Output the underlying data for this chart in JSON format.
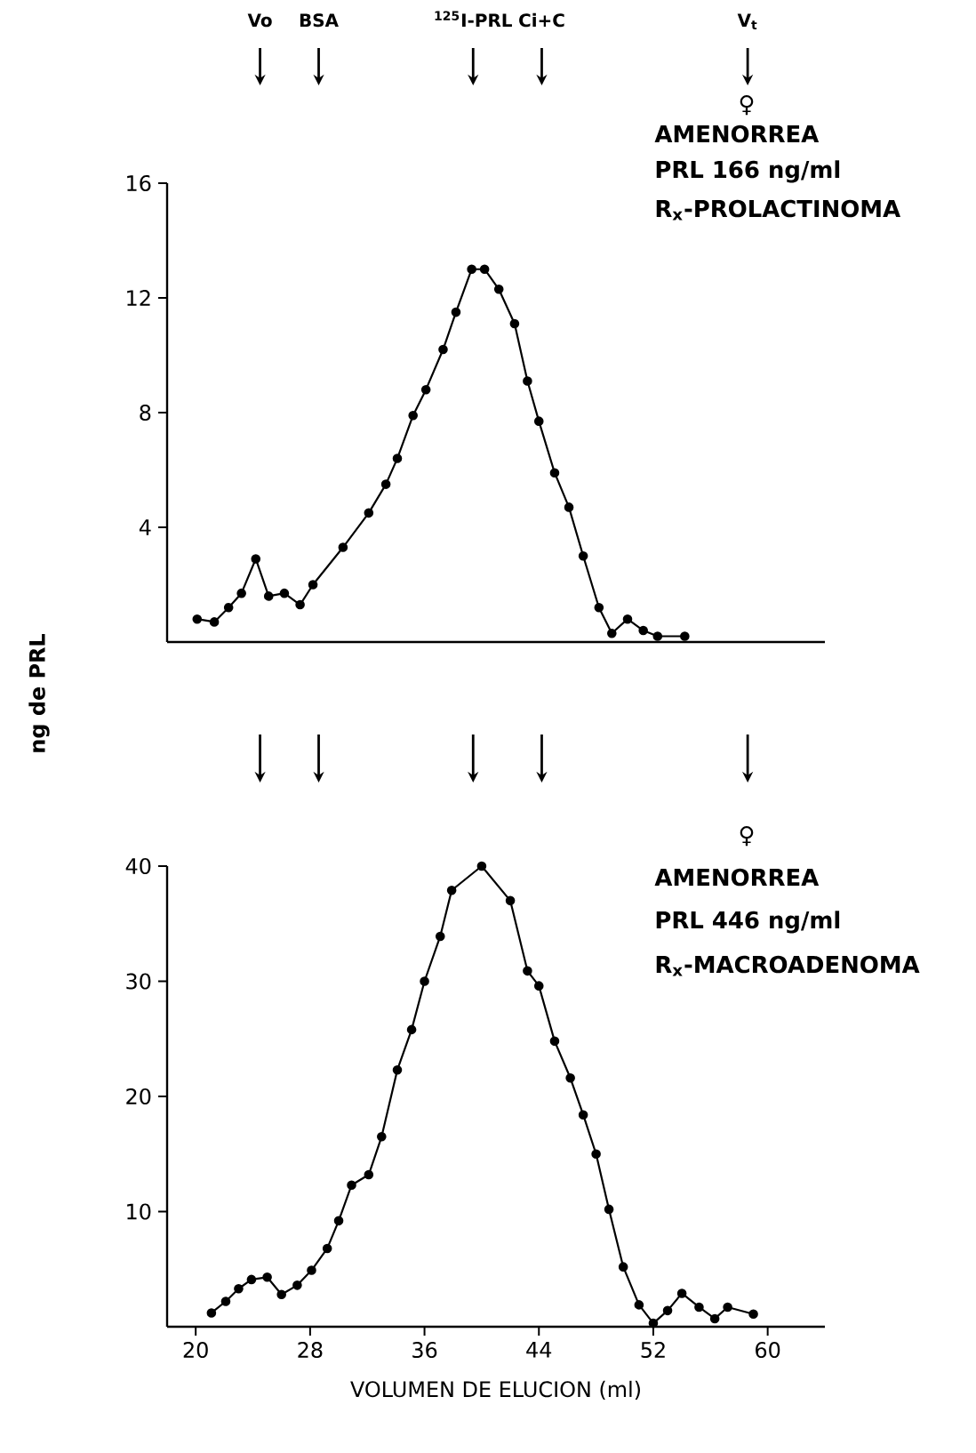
{
  "chart_data": [
    {
      "type": "line",
      "ylabel": "ng de PRL",
      "xlim": [
        18,
        64
      ],
      "ylim": [
        0,
        16
      ],
      "yticks": [
        4,
        8,
        12,
        16
      ],
      "tick_labels": "y",
      "marker": "circle",
      "line_style": "solid",
      "series": [
        {
          "color": "#000000",
          "x": [
            20.1,
            21.3,
            22.3,
            23.2,
            24.2,
            25.1,
            26.2,
            27.3,
            28.2,
            30.3,
            32.1,
            33.3,
            34.1,
            35.2,
            36.1,
            37.3,
            38.2,
            39.3,
            40.2,
            41.2,
            42.3,
            43.2,
            44.0,
            45.1,
            46.1,
            47.1,
            48.2,
            49.1,
            50.2,
            51.3,
            52.3,
            54.2
          ],
          "values": [
            0.8,
            0.7,
            1.2,
            1.7,
            2.9,
            1.6,
            1.7,
            1.3,
            2.0,
            3.3,
            4.5,
            5.5,
            6.4,
            7.9,
            8.8,
            10.2,
            11.5,
            13.0,
            13.0,
            12.3,
            11.1,
            9.1,
            7.7,
            5.9,
            4.7,
            3.0,
            1.2,
            0.3,
            0.8,
            0.4,
            0.2,
            0.2
          ]
        }
      ],
      "ref_lines": [
        {
          "axis": "x",
          "value": 24.5,
          "label": "Vo"
        },
        {
          "axis": "x",
          "value": 28.6,
          "label": "BSA"
        },
        {
          "axis": "x",
          "value": 39.4,
          "label": "$^{125}$I-PRL"
        },
        {
          "axis": "x",
          "value": 44.2,
          "label": "Ci+C"
        },
        {
          "axis": "x",
          "value": 58.6,
          "label": "V$_{t}$"
        }
      ],
      "annotations": [
        "♀",
        "AMENORREA",
        "PRL 166 ng/ml",
        "R$_{x}$-PROLACTINOMA"
      ]
    },
    {
      "type": "line",
      "xlabel": "VOLUMEN DE ELUCION (ml)",
      "xlim": [
        18,
        64
      ],
      "ylim": [
        0,
        40
      ],
      "xticks": [
        20,
        28,
        36,
        44,
        52,
        60
      ],
      "yticks": [
        10,
        20,
        30,
        40
      ],
      "marker": "circle",
      "line_style": "solid",
      "series": [
        {
          "color": "#000000",
          "x": [
            21.1,
            22.1,
            23.0,
            23.9,
            25.0,
            26.0,
            27.1,
            28.1,
            29.2,
            30.0,
            30.9,
            32.1,
            33.0,
            34.1,
            35.1,
            36.0,
            37.1,
            37.9,
            40.0,
            42.0,
            43.2,
            44.0,
            45.1,
            46.2,
            47.1,
            48.0,
            48.9,
            49.9,
            51.0,
            52.0,
            53.0,
            54.0,
            55.2,
            56.3,
            57.2,
            59.0
          ],
          "values": [
            1.2,
            2.2,
            3.3,
            4.1,
            4.3,
            2.8,
            3.6,
            4.9,
            6.8,
            9.2,
            12.3,
            13.2,
            16.5,
            22.3,
            25.8,
            30.0,
            33.9,
            37.9,
            40.0,
            37.0,
            30.9,
            29.6,
            24.8,
            21.6,
            18.4,
            15.0,
            10.2,
            5.2,
            1.9,
            0.3,
            1.4,
            2.9,
            1.7,
            0.7,
            1.7,
            1.1
          ]
        }
      ],
      "annotations": [
        "♀",
        "AMENORREA",
        "PRL 446 ng/ml",
        "R$_{x}$-MACROADENOMA"
      ]
    }
  ]
}
